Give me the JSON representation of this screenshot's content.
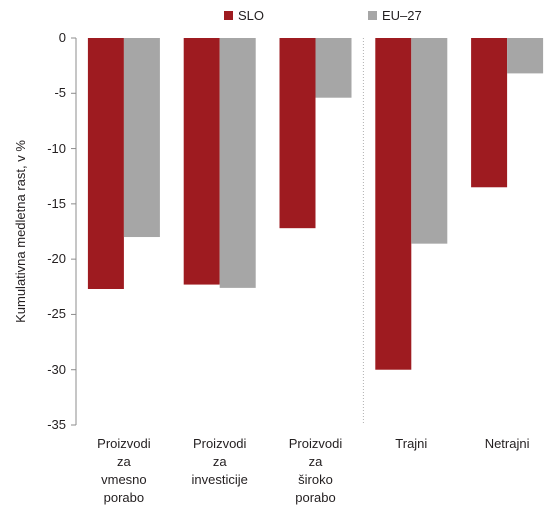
{
  "chart_data": {
    "type": "bar",
    "categories": [
      [
        "Proizvodi",
        "za",
        "vmesno",
        "porabo"
      ],
      [
        "Proizvodi",
        "za",
        "investicije"
      ],
      [
        "Proizvodi",
        "za",
        "široko",
        "porabo"
      ],
      [
        "Trajni"
      ],
      [
        "Netrajni"
      ]
    ],
    "series": [
      {
        "name": "SLO",
        "values": [
          -22.7,
          -22.3,
          -17.2,
          -30.0,
          -13.5
        ],
        "color": "#9e1b20"
      },
      {
        "name": "EU–27",
        "values": [
          -18.0,
          -22.6,
          -5.4,
          -18.6,
          -3.2
        ],
        "color": "#a6a6a6"
      }
    ],
    "title": "",
    "xlabel": "",
    "ylabel": "Kumulativna medletna rast, v %",
    "ylim": [
      -35,
      0
    ],
    "yticks": [
      "0",
      "-5",
      "-10",
      "-15",
      "-20",
      "-25",
      "-30",
      "-35"
    ],
    "ytick_values": [
      0,
      -5,
      -10,
      -15,
      -20,
      -25,
      -30,
      -35
    ],
    "grid": false,
    "legend_position": "top",
    "divider_after_category": 2
  }
}
